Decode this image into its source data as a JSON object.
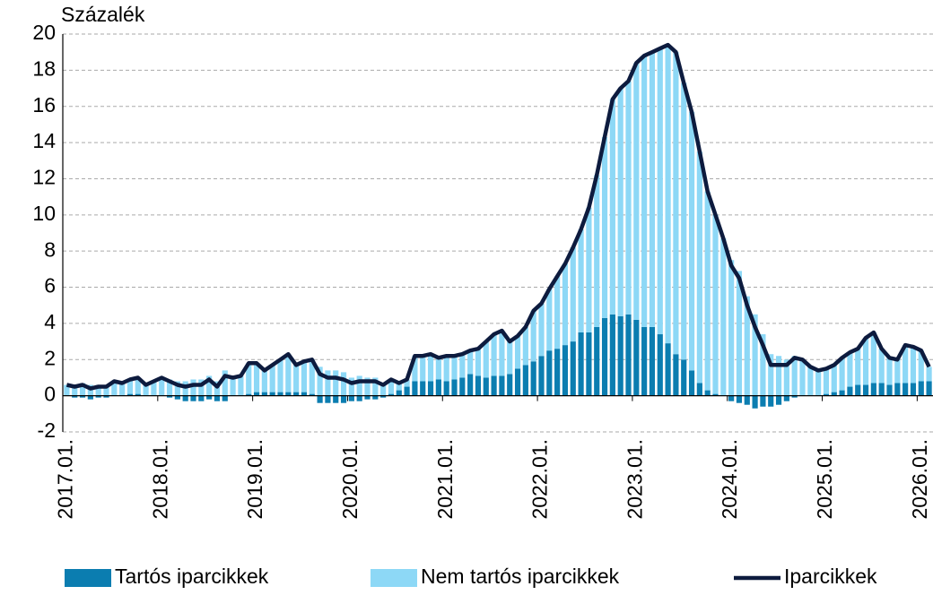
{
  "chart_data": {
    "type": "stacked-bar-line",
    "ylabel": "Százalék",
    "categories": [
      "2017.01.",
      null,
      null,
      null,
      null,
      null,
      null,
      null,
      null,
      null,
      null,
      null,
      "2018.01.",
      null,
      null,
      null,
      null,
      null,
      null,
      null,
      null,
      null,
      null,
      null,
      "2019.01.",
      null,
      null,
      null,
      null,
      null,
      null,
      null,
      null,
      null,
      null,
      null,
      "2020.01.",
      null,
      null,
      null,
      null,
      null,
      null,
      null,
      null,
      null,
      null,
      null,
      "2021.01.",
      null,
      null,
      null,
      null,
      null,
      null,
      null,
      null,
      null,
      null,
      null,
      "2022.01.",
      null,
      null,
      null,
      null,
      null,
      null,
      null,
      null,
      null,
      null,
      null,
      "2023.01.",
      null,
      null,
      null,
      null,
      null,
      null,
      null,
      null,
      null,
      null,
      null,
      "2024.01.",
      null,
      null,
      null,
      null,
      null,
      null,
      null,
      null,
      null,
      null,
      null,
      "2025.01.",
      null,
      null,
      null,
      null,
      null,
      null,
      null,
      null,
      null,
      null,
      null,
      "2026.01.",
      null
    ],
    "series": [
      {
        "name": "Tartós iparcikkek",
        "color": "#0b7db0",
        "kind": "bar",
        "values": [
          0,
          -0.1,
          -0.1,
          -0.2,
          -0.1,
          -0.1,
          0,
          0,
          0.1,
          0.1,
          0,
          0,
          0,
          -0.1,
          -0.2,
          -0.3,
          -0.3,
          -0.3,
          -0.2,
          -0.3,
          -0.3,
          0,
          0,
          0.1,
          0.2,
          0.2,
          0.2,
          0.2,
          0.2,
          0.2,
          0.2,
          0.1,
          -0.4,
          -0.4,
          -0.4,
          -0.4,
          -0.3,
          -0.3,
          -0.2,
          -0.2,
          -0.1,
          0.1,
          0.3,
          0.5,
          0.8,
          0.8,
          0.8,
          0.9,
          0.8,
          0.9,
          1.0,
          1.2,
          1.1,
          1.0,
          1.1,
          1.1,
          1.2,
          1.5,
          1.7,
          1.9,
          2.2,
          2.5,
          2.6,
          2.8,
          3.0,
          3.5,
          3.5,
          3.8,
          4.3,
          4.5,
          4.4,
          4.5,
          4.2,
          3.8,
          3.8,
          3.4,
          2.9,
          2.3,
          2.0,
          1.4,
          0.7,
          0.3,
          0.1,
          0,
          -0.3,
          -0.4,
          -0.5,
          -0.7,
          -0.6,
          -0.6,
          -0.5,
          -0.3,
          -0.1,
          0,
          0,
          0,
          0.1,
          0.2,
          0.3,
          0.5,
          0.6,
          0.6,
          0.7,
          0.7,
          0.6,
          0.7,
          0.7,
          0.7,
          0.8,
          0.8
        ]
      },
      {
        "name": "Nem tartós iparcikkek",
        "color": "#8dd8f6",
        "kind": "bar",
        "values": [
          0.6,
          0.6,
          0.7,
          0.6,
          0.6,
          0.6,
          0.8,
          0.7,
          0.8,
          0.9,
          0.6,
          0.8,
          1.0,
          0.9,
          0.8,
          0.8,
          0.9,
          0.9,
          1.1,
          0.8,
          1.4,
          1.0,
          1.1,
          1.7,
          1.6,
          1.2,
          1.5,
          1.8,
          2.1,
          1.5,
          1.7,
          1.9,
          1.6,
          1.4,
          1.4,
          1.3,
          1.0,
          1.1,
          1.0,
          1.0,
          0.7,
          0.8,
          0.4,
          0.4,
          1.4,
          1.4,
          1.5,
          1.2,
          1.4,
          1.3,
          1.3,
          1.3,
          1.5,
          2.0,
          2.3,
          2.5,
          1.8,
          1.8,
          2.1,
          2.8,
          2.9,
          3.4,
          4.0,
          4.5,
          5.2,
          5.7,
          6.9,
          8.4,
          10.0,
          11.9,
          12.6,
          12.9,
          14.2,
          15.0,
          15.2,
          15.8,
          16.5,
          16.7,
          15.3,
          14.3,
          12.8,
          11.0,
          9.9,
          8.7,
          7.5,
          6.9,
          5.5,
          4.5,
          3.4,
          2.3,
          2.2,
          2.0,
          2.2,
          2.0,
          1.6,
          1.4,
          1.4,
          1.5,
          1.8,
          1.9,
          2.0,
          2.6,
          2.8,
          1.9,
          1.5,
          1.3,
          2.1,
          2.0,
          1.7,
          0.8
        ]
      },
      {
        "name": "Iparcikkek",
        "color": "#0d1b3e",
        "kind": "line",
        "values": [
          0.6,
          0.5,
          0.6,
          0.4,
          0.5,
          0.5,
          0.8,
          0.7,
          0.9,
          1.0,
          0.6,
          0.8,
          1.0,
          0.8,
          0.6,
          0.5,
          0.6,
          0.6,
          0.9,
          0.5,
          1.1,
          1.0,
          1.1,
          1.8,
          1.8,
          1.4,
          1.7,
          2.0,
          2.3,
          1.7,
          1.9,
          2.0,
          1.2,
          1.0,
          1.0,
          0.9,
          0.7,
          0.8,
          0.8,
          0.8,
          0.6,
          0.9,
          0.7,
          0.9,
          2.2,
          2.2,
          2.3,
          2.1,
          2.2,
          2.2,
          2.3,
          2.5,
          2.6,
          3.0,
          3.4,
          3.6,
          3.0,
          3.3,
          3.8,
          4.7,
          5.1,
          5.9,
          6.6,
          7.3,
          8.2,
          9.2,
          10.4,
          12.2,
          14.3,
          16.4,
          17.0,
          17.4,
          18.4,
          18.8,
          19.0,
          19.2,
          19.4,
          19.0,
          17.3,
          15.7,
          13.5,
          11.3,
          10.0,
          8.7,
          7.2,
          6.5,
          5.0,
          3.8,
          2.8,
          1.7,
          1.7,
          1.7,
          2.1,
          2.0,
          1.6,
          1.4,
          1.5,
          1.7,
          2.1,
          2.4,
          2.6,
          3.2,
          3.5,
          2.6,
          2.1,
          2.0,
          2.8,
          2.7,
          2.5,
          1.6
        ]
      }
    ],
    "ylim": [
      -2,
      20
    ],
    "yticks": [
      -2,
      0,
      2,
      4,
      6,
      8,
      10,
      12,
      14,
      16,
      18,
      20
    ],
    "grid": true
  }
}
